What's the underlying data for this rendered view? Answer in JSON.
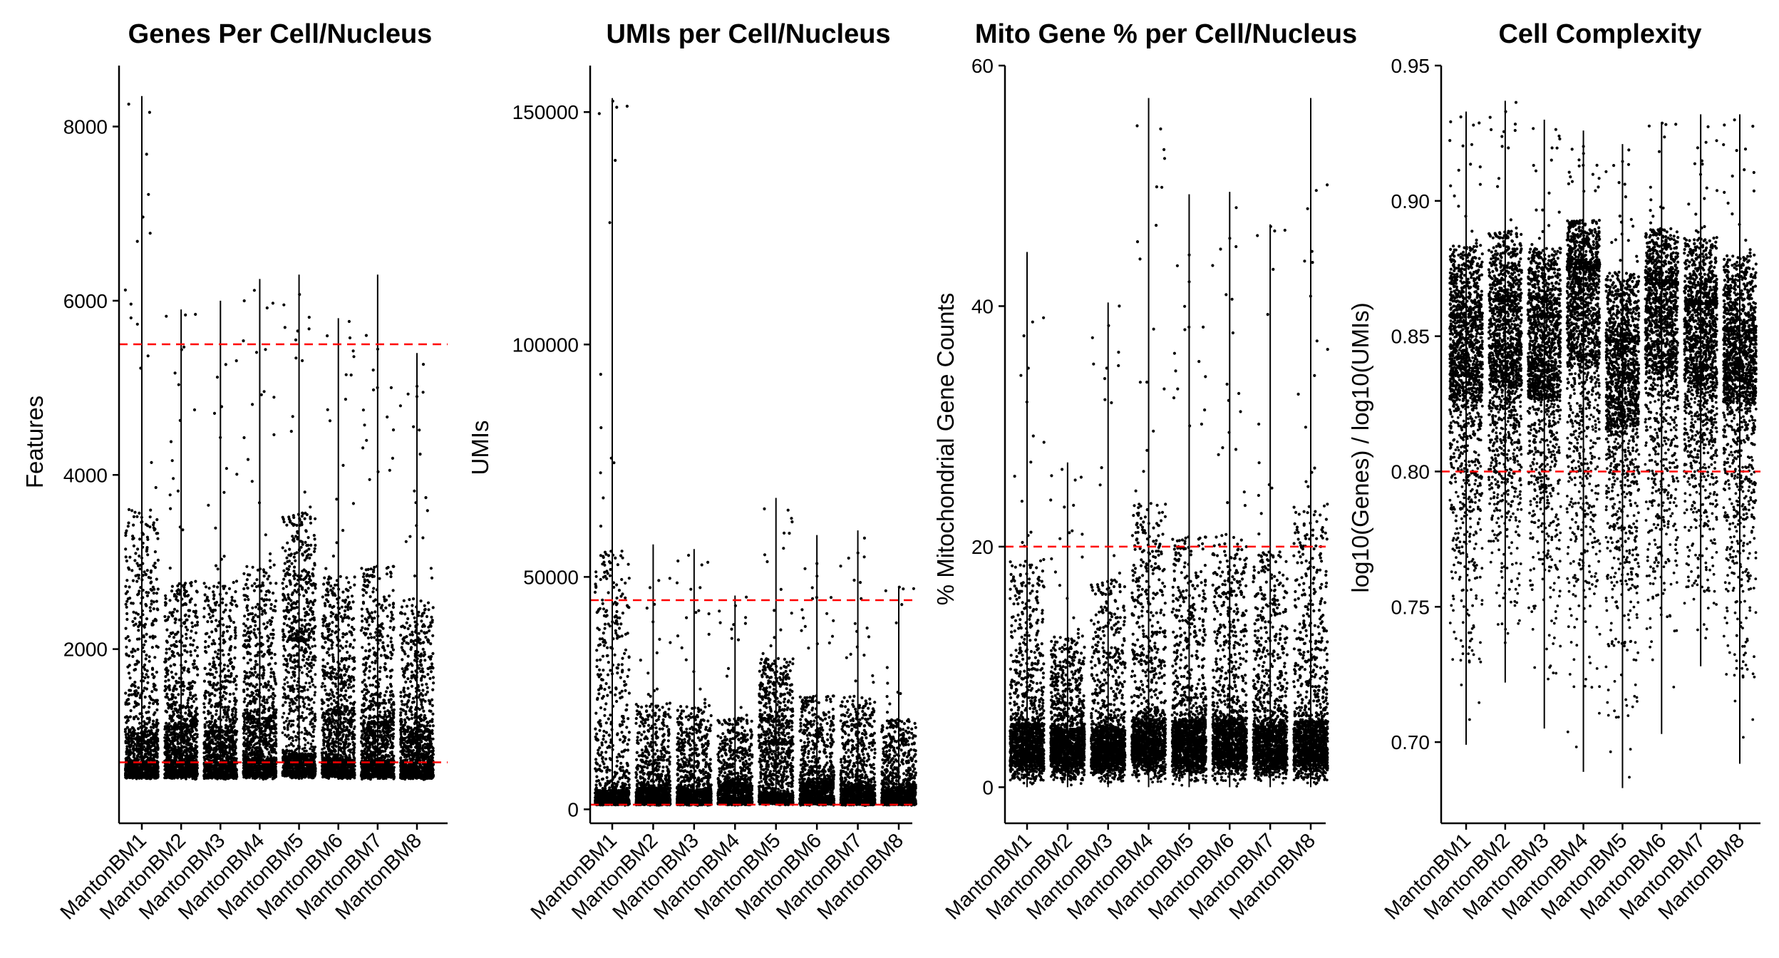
{
  "colors": {
    "points": "#000000",
    "threshold_line": "#ff0000",
    "axis": "#000000",
    "background": "#ffffff"
  },
  "chart_data": [
    {
      "type": "scatter",
      "style": "violin-jitter",
      "title": "Genes Per Cell/Nucleus",
      "ylabel": "Features",
      "xlabel": "",
      "categories": [
        "MantonBM1",
        "MantonBM2",
        "MantonBM3",
        "MantonBM4",
        "MantonBM5",
        "MantonBM6",
        "MantonBM7",
        "MantonBM8"
      ],
      "ylim": [
        0,
        8700
      ],
      "yticks": [
        2000,
        4000,
        6000,
        8000
      ],
      "log_scale": false,
      "grid": false,
      "legend": "none",
      "thresholds": [
        5500,
        700
      ],
      "summary": {
        "min": [
          500,
          500,
          500,
          500,
          500,
          500,
          500,
          500
        ],
        "q1": [
          560,
          570,
          560,
          580,
          600,
          580,
          570,
          560
        ],
        "median": [
          700,
          720,
          700,
          740,
          800,
          740,
          720,
          700
        ],
        "q3": [
          1050,
          1100,
          1050,
          1200,
          2100,
          1250,
          1150,
          1050
        ],
        "max": [
          8350,
          5900,
          6000,
          6250,
          6300,
          5800,
          6300,
          5400
        ]
      }
    },
    {
      "type": "scatter",
      "style": "violin-jitter",
      "title": "UMIs per Cell/Nucleus",
      "ylabel": "UMIs",
      "xlabel": "",
      "categories": [
        "MantonBM1",
        "MantonBM2",
        "MantonBM3",
        "MantonBM4",
        "MantonBM5",
        "MantonBM6",
        "MantonBM7",
        "MantonBM8"
      ],
      "ylim": [
        -3000,
        160000
      ],
      "yticks": [
        0,
        50000,
        100000,
        150000
      ],
      "log_scale": false,
      "grid": false,
      "legend": "none",
      "thresholds": [
        45000,
        1000
      ],
      "summary": {
        "min": [
          800,
          800,
          800,
          800,
          800,
          800,
          800,
          800
        ],
        "q1": [
          1300,
          1400,
          1300,
          1500,
          1700,
          1500,
          1400,
          1300
        ],
        "median": [
          2000,
          2100,
          2000,
          2400,
          3500,
          2400,
          2200,
          2000
        ],
        "q3": [
          4200,
          4500,
          4200,
          5500,
          14000,
          5800,
          5000,
          4200
        ],
        "max": [
          153000,
          57000,
          56000,
          46000,
          67000,
          59000,
          60000,
          48000
        ]
      }
    },
    {
      "type": "scatter",
      "style": "violin-jitter",
      "title": "Mito Gene % per Cell/Nucleus",
      "ylabel": "% Mitochondrial Gene Counts",
      "xlabel": "",
      "categories": [
        "MantonBM1",
        "MantonBM2",
        "MantonBM3",
        "MantonBM4",
        "MantonBM5",
        "MantonBM6",
        "MantonBM7",
        "MantonBM8"
      ],
      "ylim": [
        -3,
        60
      ],
      "yticks": [
        0,
        20,
        40,
        60
      ],
      "log_scale": false,
      "grid": false,
      "legend": "none",
      "thresholds": [
        20
      ],
      "summary": {
        "min": [
          0,
          0,
          0,
          0,
          0,
          0,
          0,
          0
        ],
        "q1": [
          2.6,
          2.5,
          2.5,
          2.8,
          2.7,
          2.8,
          2.6,
          2.7
        ],
        "median": [
          3.8,
          3.6,
          3.6,
          4.0,
          4.0,
          4.1,
          3.8,
          3.9
        ],
        "q3": [
          5.2,
          4.8,
          4.9,
          5.6,
          5.5,
          5.6,
          5.2,
          5.4
        ],
        "max": [
          44.5,
          27.0,
          40.3,
          57.3,
          49.3,
          49.5,
          46.8,
          57.3
        ]
      }
    },
    {
      "type": "scatter",
      "style": "violin-jitter",
      "title": "Cell Complexity",
      "ylabel": "log10(Genes) / log10(UMIs)",
      "xlabel": "",
      "categories": [
        "MantonBM1",
        "MantonBM2",
        "MantonBM3",
        "MantonBM4",
        "MantonBM5",
        "MantonBM6",
        "MantonBM7",
        "MantonBM8"
      ],
      "ylim": [
        0.67,
        0.95
      ],
      "yticks": [
        0.7,
        0.75,
        0.8,
        0.85,
        0.9,
        0.95
      ],
      "log_scale": false,
      "grid": false,
      "legend": "none",
      "thresholds": [
        0.8
      ],
      "summary": {
        "min": [
          0.699,
          0.722,
          0.705,
          0.689,
          0.683,
          0.703,
          0.728,
          0.692
        ],
        "q1": [
          0.826,
          0.831,
          0.827,
          0.838,
          0.816,
          0.836,
          0.831,
          0.825
        ],
        "median": [
          0.84,
          0.846,
          0.84,
          0.858,
          0.832,
          0.852,
          0.846,
          0.838
        ],
        "q3": [
          0.857,
          0.863,
          0.857,
          0.875,
          0.848,
          0.869,
          0.862,
          0.852
        ],
        "max": [
          0.933,
          0.937,
          0.93,
          0.926,
          0.921,
          0.929,
          0.932,
          0.932
        ]
      }
    }
  ]
}
